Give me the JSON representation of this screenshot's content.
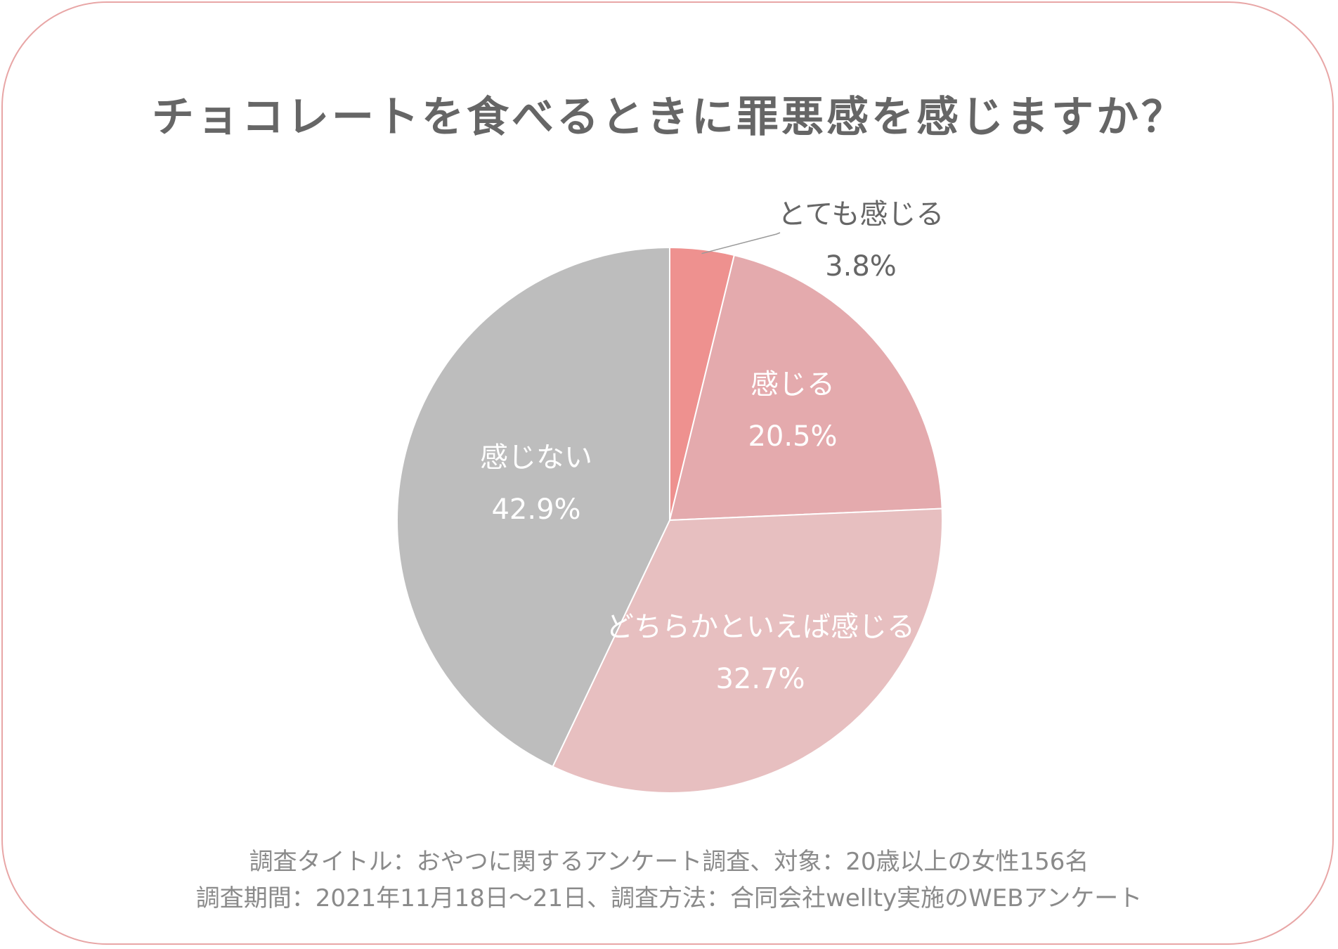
{
  "title": "チョコレートを食べるときに罪悪感を感じますか？",
  "chart_data": {
    "type": "pie",
    "start": "12 o'clock",
    "direction": "clockwise",
    "categories": [
      "とても感じる",
      "感じる",
      "どちらかといえば感じる",
      "感じない"
    ],
    "values": [
      3.8,
      20.5,
      32.7,
      42.9
    ],
    "value_labels": [
      "3.8%",
      "20.5%",
      "32.7%",
      "42.9%"
    ],
    "colors": [
      "#ee918f",
      "#e4aaad",
      "#e7bfc0",
      "#bdbdbd"
    ]
  },
  "footer": {
    "line1": "調査タイトル：おやつに関するアンケート調査、対象：20歳以上の女性156名",
    "line2": "調査期間：2021年11月18日〜21日、調査方法：合同会社wellty実施のWEBアンケート"
  },
  "colors": {
    "border": "#e8a6a6",
    "title": "#666666",
    "footer": "#8a8a8a"
  }
}
